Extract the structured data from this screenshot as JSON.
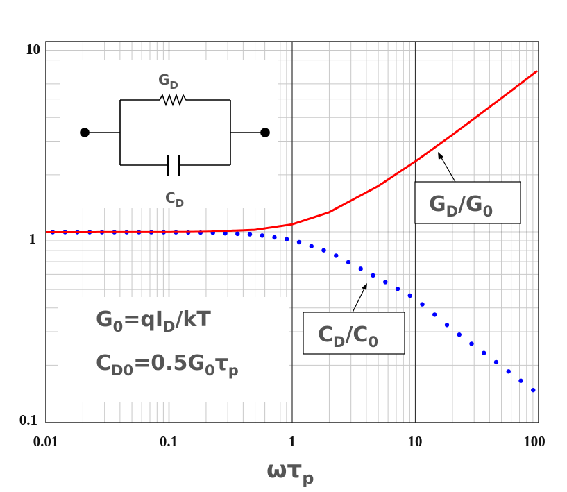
{
  "chart_data": {
    "type": "line",
    "xlabel": "ωτ",
    "xlabel_sub": "p",
    "x_scale": "log",
    "y_scale": "log",
    "xlim": [
      0.01,
      100
    ],
    "ylim": [
      0.1,
      10
    ],
    "x_ticks": [
      "0.01",
      "0.1",
      "1",
      "10",
      "100"
    ],
    "y_ticks": [
      "10",
      "1",
      "0.1"
    ],
    "grid": true,
    "x": [
      0.01,
      0.1,
      0.2,
      0.5,
      1,
      2,
      5,
      10,
      20,
      50,
      100
    ],
    "series": [
      {
        "name": "GD/G0",
        "label_main": "G",
        "label_sub1": "D",
        "label_mid": "/G",
        "label_sub2": "0",
        "color": "#ff0000",
        "style": "solid",
        "values": [
          1.0,
          1.001,
          1.005,
          1.029,
          1.099,
          1.272,
          1.746,
          2.351,
          3.242,
          5.05,
          7.106
        ]
      },
      {
        "name": "CD/C0",
        "label_main": "C",
        "label_sub1": "D",
        "label_mid": "/C",
        "label_sub2": "0",
        "color": "#0000ff",
        "style": "dotted",
        "values": [
          1.0,
          0.999,
          0.995,
          0.972,
          0.91,
          0.786,
          0.573,
          0.448,
          0.308,
          0.198,
          0.141
        ]
      }
    ],
    "annotations": {
      "eq1": {
        "a": "G",
        "a_sub": "0",
        "b": "=qI",
        "b_sub": "D",
        "c": "/kT"
      },
      "eq2": {
        "a": "C",
        "a_sub": "D0",
        "b": "=0.5G",
        "b_sub": "0",
        "c": "τ",
        "c_sub": "p"
      },
      "circuit": {
        "resistor_label": "G",
        "resistor_sub": "D",
        "capacitor_label": "C",
        "capacitor_sub": "D"
      }
    }
  }
}
